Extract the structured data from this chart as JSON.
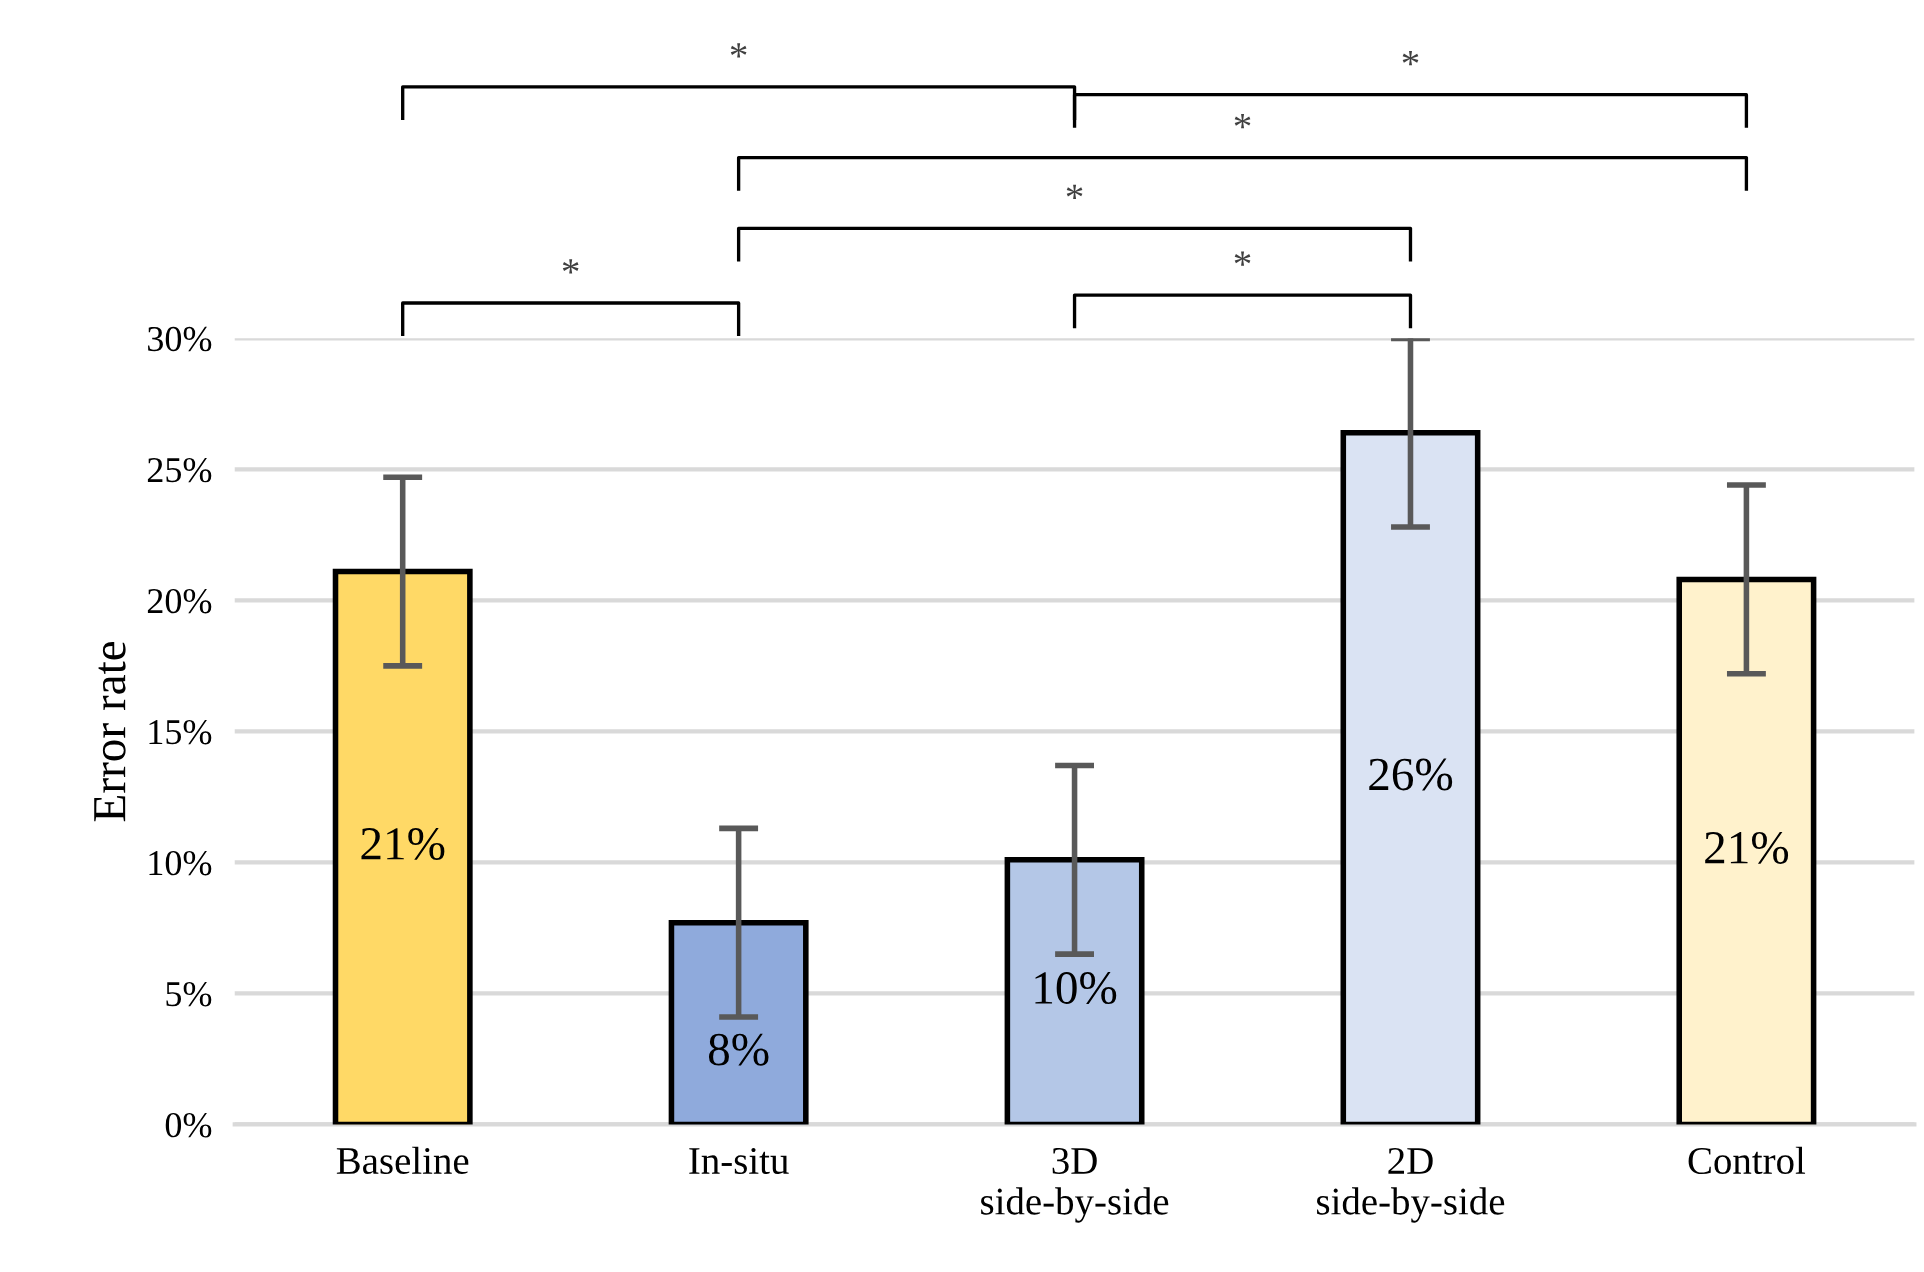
{
  "chart_data": {
    "type": "bar",
    "ylabel": "Error rate",
    "categories": [
      "Baseline",
      "In-situ",
      "3D\nside-by-side",
      "2D\nside-by-side",
      "Control"
    ],
    "values": [
      21.1,
      7.7,
      10.1,
      26.4,
      20.8
    ],
    "errors": [
      3.6,
      3.6,
      3.6,
      3.6,
      3.6
    ],
    "colors": [
      "#ffd966",
      "#8faadc",
      "#b4c7e7",
      "#dae3f3",
      "#fff2cc"
    ],
    "value_labels": [
      "21%",
      "8%",
      "10%",
      "26%",
      "21%"
    ],
    "ylim": [
      0,
      30
    ],
    "yticks": [
      {
        "value": 0,
        "label": "0%"
      },
      {
        "value": 5,
        "label": "5%"
      },
      {
        "value": 10,
        "label": "10%"
      },
      {
        "value": 15,
        "label": "15%"
      },
      {
        "value": 20,
        "label": "20%"
      },
      {
        "value": 25,
        "label": "25%"
      },
      {
        "value": 30,
        "label": "30%"
      }
    ],
    "grid": "y",
    "annotations": [
      "*",
      "*",
      "*",
      "*",
      "*",
      "*"
    ]
  }
}
